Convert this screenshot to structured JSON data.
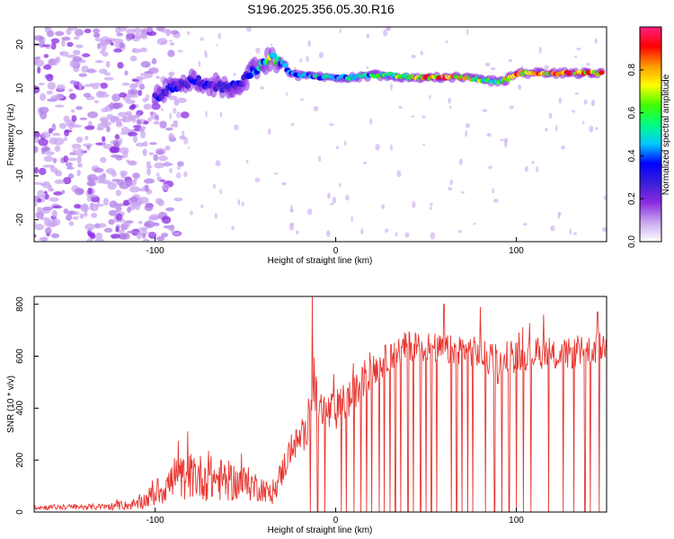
{
  "title": "S196.2025.356.05.30.R16",
  "colors": {
    "snr_line": "#e8352f",
    "colormap": [
      "#ffffff",
      "#c9a6f0",
      "#8a2be2",
      "#3a1fd8",
      "#0000ff",
      "#00c8ff",
      "#00ff80",
      "#40ff00",
      "#ffff00",
      "#ff9900",
      "#ff0000",
      "#ff1f80"
    ]
  },
  "chart_data": [
    {
      "type": "heatmap",
      "name": "spectrogram",
      "title": "",
      "xlabel": "Height of straight line (km)",
      "ylabel": "Frequency (Hz)",
      "xlim": [
        -167,
        150
      ],
      "ylim": [
        -25,
        24
      ],
      "xticks": [
        -100,
        0,
        100
      ],
      "xtick_labels": [
        "-100",
        "0",
        "100"
      ],
      "yticks": [
        -20,
        -10,
        0,
        10,
        20
      ],
      "ytick_labels": [
        "-20",
        "-10",
        "0",
        "10",
        "20"
      ],
      "colorbar": {
        "label": "Normalized spectral amplitude",
        "range": [
          0,
          1
        ],
        "ticks": [
          0.0,
          0.2,
          0.4,
          0.6,
          0.8
        ],
        "tick_labels": [
          "0.0",
          "0.2",
          "0.4",
          "0.6",
          "0.8"
        ]
      },
      "ridge": {
        "x": [
          -100,
          -92,
          -85,
          -78,
          -70,
          -62,
          -55,
          -48,
          -42,
          -36,
          -30,
          -26,
          -22,
          -15,
          -8,
          0,
          10,
          20,
          30,
          40,
          50,
          60,
          70,
          80,
          90,
          95,
          100,
          110,
          120,
          130,
          140,
          148
        ],
        "frequency": [
          8,
          10,
          11,
          12,
          11,
          10,
          11,
          13,
          15,
          17,
          16,
          14,
          13,
          13,
          12.5,
          12.5,
          12.5,
          13,
          13,
          12.5,
          12.5,
          12.5,
          12.5,
          12,
          11.5,
          12,
          13.5,
          13.5,
          13.5,
          13.5,
          13.5,
          13.5
        ],
        "amplitude": [
          0.3,
          0.35,
          0.3,
          0.35,
          0.3,
          0.3,
          0.35,
          0.35,
          0.5,
          0.7,
          0.45,
          0.45,
          0.4,
          0.5,
          0.5,
          0.5,
          0.55,
          0.55,
          0.6,
          0.7,
          0.85,
          0.9,
          0.85,
          0.7,
          0.55,
          0.75,
          0.85,
          0.9,
          0.95,
          0.95,
          0.9,
          0.85
        ]
      },
      "noise_region": {
        "x_range": [
          -167,
          -105
        ],
        "frequency_range": [
          -25,
          24
        ],
        "amplitude": 0.15
      }
    },
    {
      "type": "line",
      "name": "snr",
      "title": "",
      "xlabel": "Height of straight line (km)",
      "ylabel": "SNR (10 * v/v)",
      "xlim": [
        -167,
        150
      ],
      "ylim": [
        0,
        830
      ],
      "xticks": [
        -100,
        0,
        100
      ],
      "xtick_labels": [
        "-100",
        "0",
        "100"
      ],
      "yticks": [
        0,
        200,
        400,
        600,
        800
      ],
      "ytick_labels": [
        "0",
        "200",
        "400",
        "600",
        "800"
      ],
      "series": [
        {
          "name": "SNR",
          "envelope": {
            "x": [
              -167,
              -130,
              -110,
              -100,
              -90,
              -80,
              -70,
              -60,
              -50,
              -40,
              -35,
              -30,
              -25,
              -20,
              -16,
              -14,
              -10,
              -5,
              0,
              5,
              10,
              15,
              20,
              30,
              40,
              50,
              60,
              70,
              80,
              90,
              100,
              110,
              120,
              130,
              140,
              150
            ],
            "mean": [
              18,
              20,
              28,
              70,
              120,
              140,
              130,
              120,
              110,
              90,
              60,
              150,
              240,
              280,
              300,
              520,
              400,
              380,
              390,
              420,
              450,
              500,
              540,
              600,
              640,
              640,
              620,
              630,
              610,
              560,
              600,
              610,
              600,
              610,
              620,
              640
            ],
            "spread": [
              10,
              12,
              20,
              50,
              80,
              90,
              90,
              80,
              70,
              50,
              30,
              60,
              60,
              60,
              60,
              120,
              90,
              80,
              80,
              80,
              70,
              70,
              60,
              60,
              60,
              60,
              60,
              60,
              60,
              70,
              60,
              60,
              60,
              60,
              60,
              60
            ]
          },
          "peaks": [
            {
              "x": -13,
              "y": 828
            },
            {
              "x": 60,
              "y": 800
            },
            {
              "x": 80,
              "y": 790
            },
            {
              "x": 115,
              "y": 760
            },
            {
              "x": 145,
              "y": 770
            }
          ],
          "dropouts_x": [
            -14,
            -10,
            -6,
            3,
            6,
            10,
            14,
            17,
            20,
            24,
            27,
            30,
            33,
            36,
            40,
            43,
            47,
            50,
            53,
            56,
            60,
            64,
            67,
            70,
            73,
            76,
            80,
            83,
            88,
            92,
            96,
            100,
            104,
            108,
            115,
            118,
            126,
            132,
            138,
            141,
            146
          ]
        }
      ]
    }
  ]
}
